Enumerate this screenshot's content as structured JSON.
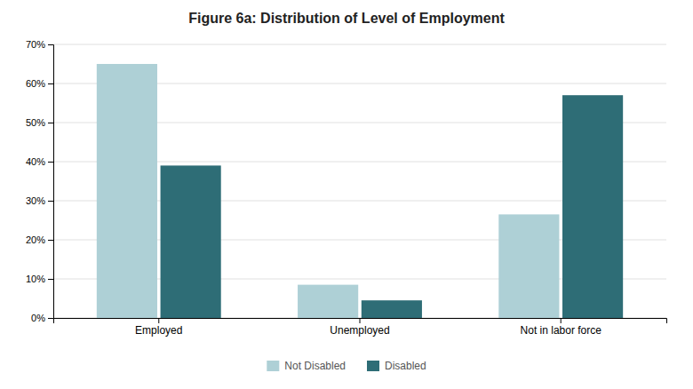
{
  "chart_data": {
    "type": "bar",
    "title": "Figure 6a: Distribution of Level of Employment",
    "categories": [
      "Employed",
      "Unemployed",
      "Not in labor force"
    ],
    "series": [
      {
        "name": "Not Disabled",
        "color": "#aed0d6",
        "values": [
          65,
          8.5,
          26.5
        ]
      },
      {
        "name": "Disabled",
        "color": "#2e6d76",
        "values": [
          39,
          4.5,
          57
        ]
      }
    ],
    "ylim": [
      0,
      70
    ],
    "yticks": [
      {
        "value": 0,
        "label": "0%"
      },
      {
        "value": 10,
        "label": "10%"
      },
      {
        "value": 20,
        "label": "20%"
      },
      {
        "value": 30,
        "label": "30%"
      },
      {
        "value": 40,
        "label": "40%"
      },
      {
        "value": 50,
        "label": "50%"
      },
      {
        "value": 60,
        "label": "60%"
      },
      {
        "value": 70,
        "label": "70%"
      }
    ],
    "grid": true,
    "legend": "bottom"
  }
}
